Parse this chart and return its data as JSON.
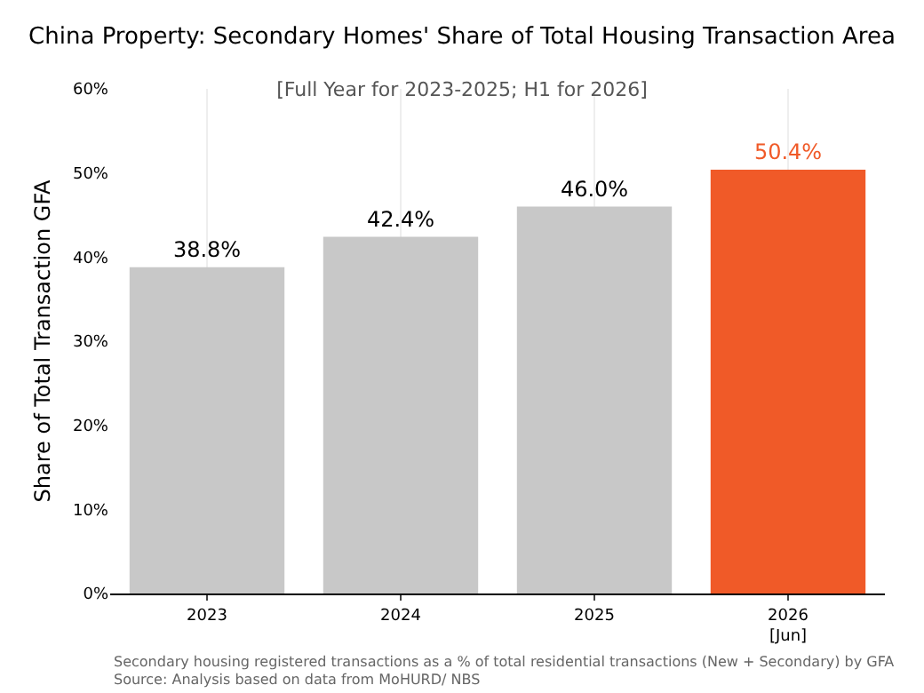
{
  "chart_data": {
    "type": "bar",
    "title": "China Property: Secondary Homes' Share of Total Housing Transaction Area",
    "subtitle": "[Full Year for 2023-2025; H1 for 2026]",
    "ylabel": "Share of Total Transaction GFA",
    "categories": [
      "2023",
      "2024",
      "2025",
      "2026\n[Jun]"
    ],
    "values": [
      38.8,
      42.4,
      46.0,
      50.4
    ],
    "colors": [
      "#c8c8c8",
      "#c8c8c8",
      "#c8c8c8",
      "#f05a28"
    ],
    "value_labels": [
      "38.8%",
      "42.4%",
      "46.0%",
      "50.4%"
    ],
    "ylim": [
      0,
      60
    ],
    "yticks": [
      {
        "value": 0,
        "label": "0%"
      },
      {
        "value": 10,
        "label": "10%"
      },
      {
        "value": 20,
        "label": "20%"
      },
      {
        "value": 30,
        "label": "30%"
      },
      {
        "value": 40,
        "label": "40%"
      },
      {
        "value": 50,
        "label": "50%"
      },
      {
        "value": 60,
        "label": "60%"
      }
    ],
    "grid": "x",
    "annotations": [
      "Secondary housing registered transactions as a % of total residential transactions (New + Secondary) by GFA",
      "Source: Analysis based on data from MoHURD/ NBS"
    ]
  }
}
